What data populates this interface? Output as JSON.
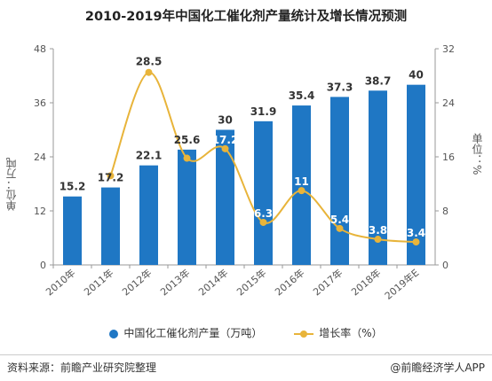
{
  "title": "2010-2019年中国化工催化剂产量统计及增长情况预测",
  "chart_data": {
    "type": "bar",
    "categories": [
      "2010年",
      "2011年",
      "2012年",
      "2013年",
      "2014年",
      "2015年",
      "2016年",
      "2017年",
      "2018年",
      "2019年E"
    ],
    "series": [
      {
        "name": "中国化工催化剂产量（万吨）",
        "type": "bar",
        "axis": "left",
        "values": [
          15.2,
          17.2,
          22.1,
          25.6,
          30,
          31.9,
          35.4,
          37.3,
          38.7,
          40
        ],
        "labels": [
          "15.2",
          "17.2",
          "22.1",
          "25.6",
          "30",
          "31.9",
          "35.4",
          "37.3",
          "38.7",
          "40"
        ]
      },
      {
        "name": "增长率（%）",
        "type": "line",
        "axis": "right",
        "values": [
          null,
          13.2,
          28.5,
          15.8,
          17.2,
          6.3,
          11,
          5.4,
          3.8,
          3.4
        ],
        "labels": [
          "",
          "",
          "28.5",
          "",
          "17.2",
          "6.3",
          "11",
          "5.4",
          "3.8",
          "3.4"
        ]
      }
    ],
    "y_left": {
      "label": "单位：万吨",
      "min": 0,
      "max": 48,
      "ticks": [
        0,
        12,
        24,
        36,
        48
      ]
    },
    "y_right": {
      "label": "单位：%",
      "min": 0,
      "max": 32,
      "ticks": [
        0,
        8,
        16,
        24,
        32
      ]
    },
    "grid": false,
    "legend_position": "bottom",
    "colors": {
      "bar": "#1f77c4",
      "line": "#e8b43a"
    }
  },
  "legend": {
    "bar": "中国化工催化剂产量（万吨）",
    "line": "增长率（%）"
  },
  "footer": {
    "source": "资料来源：前瞻产业研究院整理",
    "brand": "@前瞻经济学人APP"
  }
}
